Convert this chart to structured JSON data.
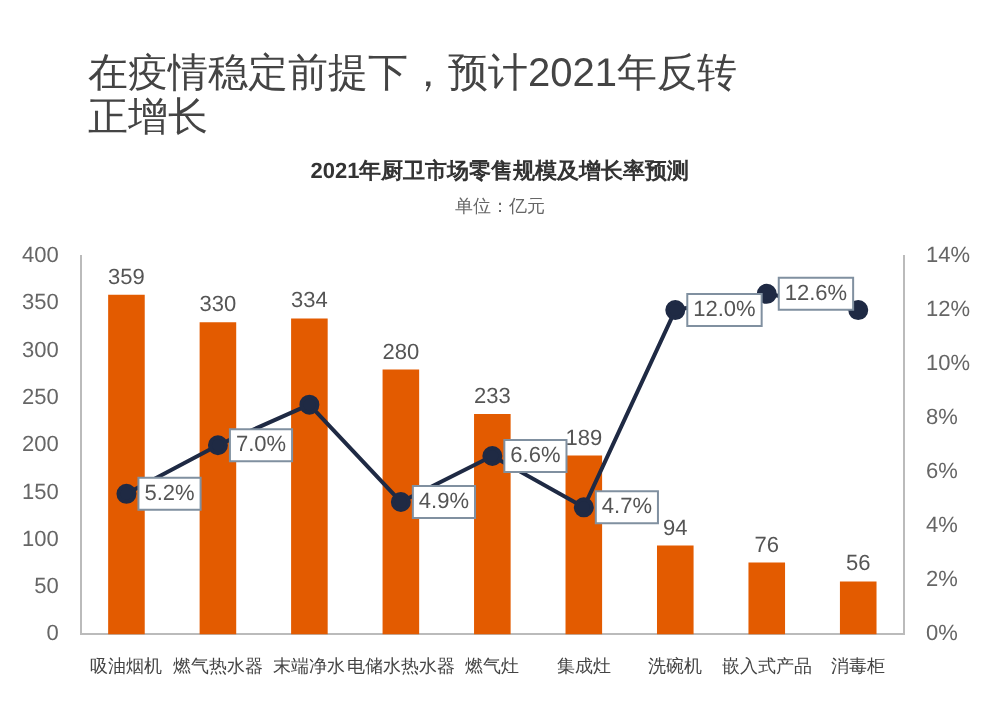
{
  "chart_data": {
    "type": "bar",
    "title": "在疫情稳定前提下，预计2021年反转正增长",
    "subtitle": "2021年厨卫市场零售规模及增长率预测",
    "annotations": [
      "单位：亿元"
    ],
    "categories": [
      "吸油烟机",
      "燃气热水器",
      "末端净水",
      "电储水热水器",
      "燃气灶",
      "集成灶",
      "洗碗机",
      "嵌入式产品",
      "消毒柜"
    ],
    "series": [
      {
        "color": "#e35b00",
        "values": [
          359,
          330,
          334,
          280,
          233,
          189,
          94,
          76,
          56
        ]
      },
      {
        "type": "line",
        "axis": "y2",
        "color": "#1f2a44",
        "marker": "circle",
        "values": [
          5.2,
          7.0,
          8.5,
          4.9,
          6.6,
          4.7,
          12.0,
          12.6,
          12.0
        ],
        "value_labels": [
          "5.2%",
          "7.0%",
          null,
          "4.9%",
          "6.6%",
          "4.7%",
          "12.0%",
          "12.6%",
          null
        ]
      }
    ],
    "data_labels": true,
    "grid": false,
    "legend": false,
    "ylim": [
      0,
      400
    ],
    "yticks": [
      0,
      50,
      100,
      150,
      200,
      250,
      300,
      350,
      400
    ],
    "y2lim": [
      0,
      14
    ],
    "y2ticks": [
      {
        "value": 0,
        "label": "0%"
      },
      {
        "value": 2,
        "label": "2%"
      },
      {
        "value": 4,
        "label": "4%"
      },
      {
        "value": 6,
        "label": "6%"
      },
      {
        "value": 8,
        "label": "8%"
      },
      {
        "value": 10,
        "label": "10%"
      },
      {
        "value": 12,
        "label": "12%"
      },
      {
        "value": 14,
        "label": "14%"
      }
    ]
  }
}
